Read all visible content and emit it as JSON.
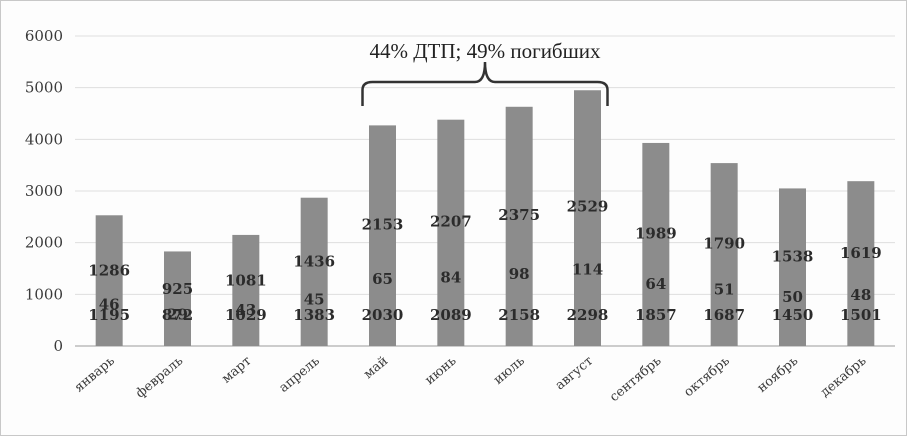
{
  "chart_data": {
    "type": "bar",
    "title": "",
    "xlabel": "",
    "ylabel": "",
    "ylim": [
      0,
      6000
    ],
    "yticks": [
      0,
      1000,
      2000,
      3000,
      4000,
      5000,
      6000
    ],
    "grid": true,
    "categories": [
      "январь",
      "февраль",
      "март",
      "апрель",
      "май",
      "июнь",
      "июль",
      "август",
      "сентябрь",
      "октябрь",
      "ноябрь",
      "декабрь"
    ],
    "values": [
      2530,
      1830,
      2150,
      2870,
      4270,
      4380,
      4630,
      4950,
      3930,
      3540,
      3050,
      3190
    ],
    "data_labels": [
      [
        "1286",
        "46",
        "1195"
      ],
      [
        "925",
        "29",
        "872"
      ],
      [
        "1081",
        "43",
        "1029"
      ],
      [
        "1436",
        "45",
        "1383"
      ],
      [
        "2153",
        "65",
        "2030"
      ],
      [
        "2207",
        "84",
        "2089"
      ],
      [
        "2375",
        "98",
        "2158"
      ],
      [
        "2529",
        "114",
        "2298"
      ],
      [
        "1989",
        "64",
        "1857"
      ],
      [
        "1790",
        "51",
        "1687"
      ],
      [
        "1538",
        "50",
        "1450"
      ],
      [
        "1619",
        "48",
        "1501"
      ]
    ],
    "annotation": {
      "text": "44% ДТП; 49% погибших",
      "from_category": "май",
      "to_category": "август"
    },
    "bar_color": "#8c8c8c"
  }
}
